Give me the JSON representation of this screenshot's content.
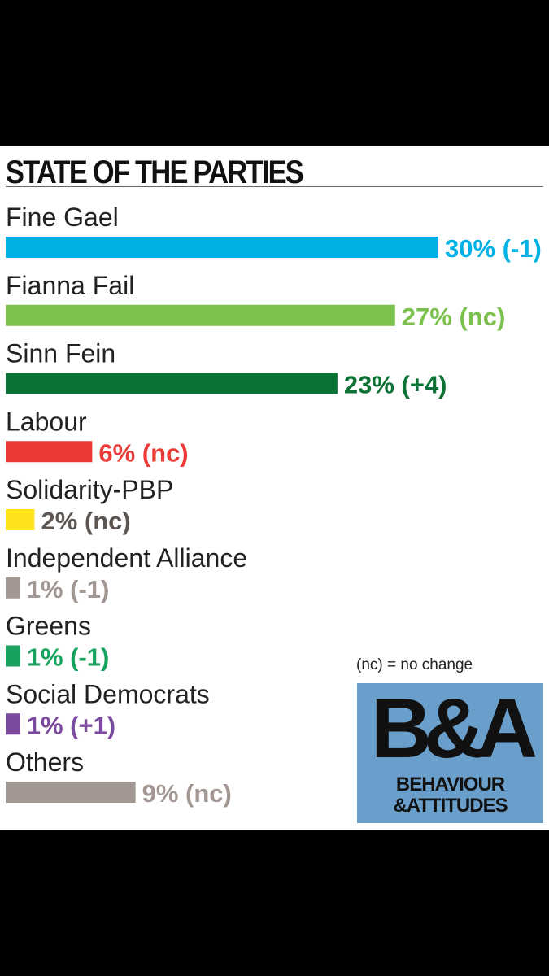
{
  "chart_data": {
    "type": "bar",
    "orientation": "horizontal",
    "title": "STATE OF THE PARTIES",
    "categories": [
      "Fine Gael",
      "Fianna Fail",
      "Sinn Fein",
      "Labour",
      "Solidarity-PBP",
      "Independent Alliance",
      "Greens",
      "Social Democrats",
      "Others"
    ],
    "values": [
      30,
      27,
      23,
      6,
      2,
      1,
      1,
      1,
      9
    ],
    "changes": [
      "-1",
      "nc",
      "+4",
      "nc",
      "nc",
      "-1",
      "-1",
      "+1",
      "nc"
    ],
    "value_labels": [
      "30% (-1)",
      "27% (nc)",
      "23% (+4)",
      "6% (nc)",
      "2% (nc)",
      "1% (-1)",
      "1% (-1)",
      "1% (+1)",
      "9% (nc)"
    ],
    "bar_colors": [
      "#00b1e6",
      "#7cc04e",
      "#0d7236",
      "#ec3a37",
      "#fde31c",
      "#a39793",
      "#17a35e",
      "#7b4a9e",
      "#a39793"
    ],
    "label_colors": [
      "#00b1e6",
      "#7cc04e",
      "#0d7236",
      "#ec3a37",
      "#5e5653",
      "#a39793",
      "#17a35e",
      "#7b4a9e",
      "#a39793"
    ],
    "unit": "%",
    "xlim": [
      0,
      30
    ],
    "grid": false,
    "legend": null
  },
  "legend_note": "(nc) = no change",
  "logo": {
    "mark": "B&A",
    "line1": "BEHAVIOUR",
    "line2": "&ATTITUDES"
  }
}
